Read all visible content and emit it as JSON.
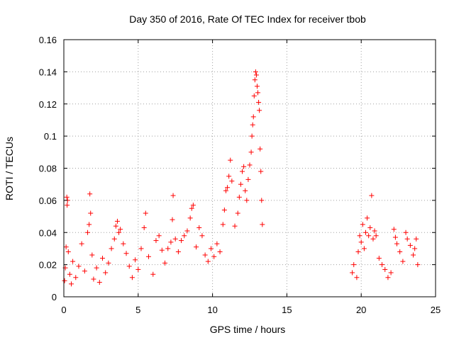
{
  "chart_data": {
    "type": "scatter",
    "title": "Day 350 of 2016, Rate Of TEC Index for receiver tbob",
    "xlabel": "GPS time / hours",
    "ylabel": "ROTI / TECUs",
    "xlim": [
      0,
      25
    ],
    "ylim": [
      0,
      0.16
    ],
    "xticks": [
      0,
      5,
      10,
      15,
      20,
      25
    ],
    "yticks": [
      0,
      0.02,
      0.04,
      0.06,
      0.08,
      0.1,
      0.12,
      0.14,
      0.16
    ],
    "xtick_labels": [
      "0",
      "5",
      "10",
      "15",
      "20",
      "25"
    ],
    "ytick_labels": [
      "0",
      "0.02",
      "0.04",
      "0.06",
      "0.08",
      "0.1",
      "0.12",
      "0.14",
      "0.16"
    ],
    "grid": true,
    "marker": "+",
    "color": "#ff0000",
    "series": [
      {
        "name": "ROTI",
        "points": [
          [
            0.05,
            0.01
          ],
          [
            0.1,
            0.018
          ],
          [
            0.15,
            0.031
          ],
          [
            0.2,
            0.062
          ],
          [
            0.22,
            0.057
          ],
          [
            0.25,
            0.06
          ],
          [
            0.3,
            0.028
          ],
          [
            0.4,
            0.014
          ],
          [
            0.5,
            0.008
          ],
          [
            0.6,
            0.022
          ],
          [
            0.8,
            0.012
          ],
          [
            1.0,
            0.019
          ],
          [
            1.2,
            0.033
          ],
          [
            1.4,
            0.016
          ],
          [
            1.6,
            0.04
          ],
          [
            1.7,
            0.045
          ],
          [
            1.75,
            0.064
          ],
          [
            1.8,
            0.052
          ],
          [
            1.9,
            0.026
          ],
          [
            2.0,
            0.011
          ],
          [
            2.2,
            0.018
          ],
          [
            2.4,
            0.009
          ],
          [
            2.6,
            0.024
          ],
          [
            2.8,
            0.015
          ],
          [
            3.0,
            0.021
          ],
          [
            3.2,
            0.03
          ],
          [
            3.4,
            0.036
          ],
          [
            3.5,
            0.044
          ],
          [
            3.6,
            0.047
          ],
          [
            3.7,
            0.04
          ],
          [
            3.8,
            0.042
          ],
          [
            4.0,
            0.033
          ],
          [
            4.2,
            0.027
          ],
          [
            4.4,
            0.019
          ],
          [
            4.6,
            0.012
          ],
          [
            4.8,
            0.023
          ],
          [
            5.0,
            0.017
          ],
          [
            5.2,
            0.03
          ],
          [
            5.4,
            0.043
          ],
          [
            5.5,
            0.052
          ],
          [
            5.7,
            0.025
          ],
          [
            6.0,
            0.014
          ],
          [
            6.2,
            0.035
          ],
          [
            6.4,
            0.038
          ],
          [
            6.6,
            0.029
          ],
          [
            6.8,
            0.021
          ],
          [
            7.0,
            0.03
          ],
          [
            7.2,
            0.034
          ],
          [
            7.3,
            0.048
          ],
          [
            7.35,
            0.063
          ],
          [
            7.5,
            0.036
          ],
          [
            7.7,
            0.028
          ],
          [
            7.9,
            0.035
          ],
          [
            8.1,
            0.038
          ],
          [
            8.3,
            0.041
          ],
          [
            8.5,
            0.049
          ],
          [
            8.6,
            0.055
          ],
          [
            8.7,
            0.057
          ],
          [
            8.9,
            0.031
          ],
          [
            9.1,
            0.043
          ],
          [
            9.3,
            0.038
          ],
          [
            9.5,
            0.026
          ],
          [
            9.7,
            0.022
          ],
          [
            9.9,
            0.03
          ],
          [
            10.1,
            0.025
          ],
          [
            10.3,
            0.033
          ],
          [
            10.5,
            0.028
          ],
          [
            10.7,
            0.045
          ],
          [
            10.8,
            0.054
          ],
          [
            10.9,
            0.066
          ],
          [
            11.0,
            0.068
          ],
          [
            11.1,
            0.075
          ],
          [
            11.2,
            0.085
          ],
          [
            11.3,
            0.072
          ],
          [
            11.5,
            0.044
          ],
          [
            11.7,
            0.052
          ],
          [
            11.8,
            0.062
          ],
          [
            11.9,
            0.07
          ],
          [
            12.0,
            0.078
          ],
          [
            12.1,
            0.081
          ],
          [
            12.2,
            0.066
          ],
          [
            12.3,
            0.06
          ],
          [
            12.4,
            0.073
          ],
          [
            12.5,
            0.082
          ],
          [
            12.6,
            0.09
          ],
          [
            12.65,
            0.1
          ],
          [
            12.7,
            0.107
          ],
          [
            12.75,
            0.112
          ],
          [
            12.8,
            0.125
          ],
          [
            12.85,
            0.135
          ],
          [
            12.9,
            0.14
          ],
          [
            12.95,
            0.138
          ],
          [
            13.0,
            0.131
          ],
          [
            13.05,
            0.127
          ],
          [
            13.1,
            0.121
          ],
          [
            13.15,
            0.116
          ],
          [
            13.2,
            0.092
          ],
          [
            13.25,
            0.078
          ],
          [
            13.3,
            0.06
          ],
          [
            13.35,
            0.045
          ],
          [
            19.4,
            0.015
          ],
          [
            19.5,
            0.02
          ],
          [
            19.7,
            0.012
          ],
          [
            19.8,
            0.028
          ],
          [
            19.9,
            0.038
          ],
          [
            20.0,
            0.034
          ],
          [
            20.1,
            0.045
          ],
          [
            20.2,
            0.03
          ],
          [
            20.3,
            0.04
          ],
          [
            20.4,
            0.049
          ],
          [
            20.5,
            0.038
          ],
          [
            20.6,
            0.043
          ],
          [
            20.7,
            0.063
          ],
          [
            20.8,
            0.036
          ],
          [
            20.9,
            0.041
          ],
          [
            21.0,
            0.038
          ],
          [
            21.2,
            0.024
          ],
          [
            21.4,
            0.02
          ],
          [
            21.6,
            0.017
          ],
          [
            21.8,
            0.012
          ],
          [
            22.0,
            0.015
          ],
          [
            22.2,
            0.042
          ],
          [
            22.3,
            0.037
          ],
          [
            22.4,
            0.033
          ],
          [
            22.6,
            0.028
          ],
          [
            22.8,
            0.022
          ],
          [
            23.0,
            0.04
          ],
          [
            23.1,
            0.036
          ],
          [
            23.3,
            0.032
          ],
          [
            23.5,
            0.026
          ],
          [
            23.6,
            0.03
          ],
          [
            23.7,
            0.036
          ],
          [
            23.8,
            0.02
          ]
        ]
      }
    ]
  }
}
